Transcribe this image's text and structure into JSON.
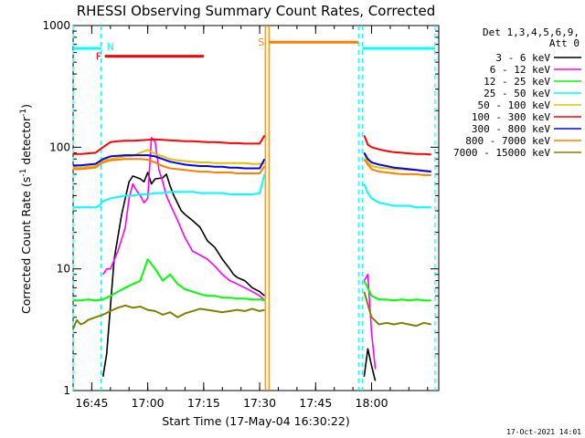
{
  "chart_data": {
    "type": "line",
    "title": "RHESSI Observing Summary Count Rates, Corrected",
    "xlabel": "Start Time (17-May-04 16:30:22)",
    "ylabel": "Corrected Count Rate (s⁻¹ detector⁻¹)",
    "ylabel_parts": {
      "main": "Corrected Count Rate (s",
      "sup1": "-1",
      "mid": " detector",
      "sup2": "-1",
      "end": ")"
    },
    "x_unit": "minutes of day (UT)",
    "xlim": [
      1000,
      1098
    ],
    "ylim": [
      1,
      1000
    ],
    "yscale": "log",
    "x_ticks": [
      {
        "value": 1005,
        "label": "16:45"
      },
      {
        "value": 1020,
        "label": "17:00"
      },
      {
        "value": 1035,
        "label": "17:15"
      },
      {
        "value": 1050,
        "label": "17:30"
      },
      {
        "value": 1065,
        "label": "17:45"
      },
      {
        "value": 1080,
        "label": "18:00"
      }
    ],
    "y_ticks": [
      {
        "value": 1,
        "label": "1"
      },
      {
        "value": 10,
        "label": "10"
      },
      {
        "value": 100,
        "label": "100"
      },
      {
        "value": 1000,
        "label": "1000"
      }
    ],
    "legend_header": [
      "Det 1,3,4,5,6,9,",
      "Att 0"
    ],
    "legend_position": "right",
    "footer_timestamp": "17-Oct-2021 14:01",
    "flags": [
      {
        "name": "N",
        "start": 1000,
        "end": 1007.5,
        "y": 650,
        "color": "#00ffff"
      },
      {
        "name": "N",
        "start": 1077.5,
        "end": 1097,
        "y": 650,
        "color": "#00ffff"
      },
      {
        "name": "F",
        "start": 1008.5,
        "end": 1035,
        "y": 560,
        "color": "#ff0000"
      },
      {
        "name": "S",
        "start": 1052.5,
        "end": 1076.5,
        "y": 730,
        "color": "#ff8000"
      }
    ],
    "flag_labels": {
      "N": "N",
      "F": "F",
      "S": "S"
    },
    "boundaries": [
      {
        "x": 1000,
        "color": "#00ffff"
      },
      {
        "x": 1007.5,
        "color": "#00ffff"
      },
      {
        "x": 1051.5,
        "color": "#ff8000"
      },
      {
        "x": 1052.5,
        "color": "#ff8000"
      },
      {
        "x": 1076.5,
        "color": "#00ffff"
      },
      {
        "x": 1077.5,
        "color": "#00ffff"
      },
      {
        "x": 1097,
        "color": "#00ffff"
      }
    ],
    "series": [
      {
        "name": "3 - 6 keV",
        "color": "#000000",
        "lw": 1.6,
        "x": [
          1008,
          1009,
          1011,
          1013,
          1015,
          1016,
          1018,
          1019,
          1020,
          1021,
          1022,
          1024,
          1025,
          1026,
          1027,
          1029,
          1030,
          1032,
          1034,
          1036,
          1038,
          1040,
          1042,
          1043,
          1044,
          1046,
          1048,
          1050,
          1051.3,
          1078,
          1079,
          1080,
          1081
        ],
        "y": [
          1.3,
          2.0,
          12,
          28,
          52,
          58,
          55,
          52,
          62,
          50,
          55,
          56,
          60,
          48,
          40,
          30,
          28,
          25,
          22,
          17,
          15,
          12,
          10,
          9,
          8.5,
          8,
          7,
          6.5,
          6,
          1.3,
          2.2,
          1.6,
          1.2
        ]
      },
      {
        "name": "6 - 12 keV",
        "color": "#ff00ff",
        "lw": 1.6,
        "x": [
          1008,
          1009,
          1010,
          1012,
          1014,
          1015,
          1016,
          1017,
          1018,
          1019,
          1020,
          1021,
          1022,
          1023,
          1024,
          1025,
          1026,
          1028,
          1030,
          1032,
          1034,
          1036,
          1038,
          1040,
          1042,
          1044,
          1046,
          1048,
          1050,
          1051.3,
          1078,
          1079,
          1080,
          1081
        ],
        "y": [
          9,
          10,
          10,
          14,
          22,
          38,
          50,
          44,
          40,
          35,
          38,
          120,
          110,
          65,
          52,
          40,
          34,
          25,
          18,
          14,
          13,
          12,
          10.5,
          9,
          8,
          7.5,
          7,
          6.5,
          6,
          5.5,
          8,
          9,
          3,
          1.5
        ]
      },
      {
        "name": "12 - 25 keV",
        "color": "#00ff00",
        "lw": 2,
        "x": [
          1000,
          1002,
          1004,
          1006,
          1008,
          1010,
          1012,
          1014,
          1016,
          1018,
          1020,
          1022,
          1024,
          1026,
          1028,
          1030,
          1032,
          1034,
          1036,
          1038,
          1040,
          1042,
          1044,
          1046,
          1048,
          1050,
          1051.3,
          1078,
          1080,
          1082,
          1084,
          1086,
          1088,
          1090,
          1092,
          1094,
          1096
        ],
        "y": [
          5.5,
          5.5,
          5.6,
          5.5,
          5.6,
          6.0,
          6.5,
          7.0,
          7.5,
          8.0,
          12,
          10,
          8,
          9,
          7.5,
          6.8,
          6.5,
          6.2,
          6.0,
          6.0,
          5.8,
          5.8,
          5.7,
          5.7,
          5.6,
          5.6,
          5.5,
          8,
          6.0,
          5.6,
          5.6,
          5.5,
          5.6,
          5.5,
          5.6,
          5.5,
          5.5
        ]
      },
      {
        "name": "25 - 50 keV",
        "color": "#00ffff",
        "lw": 2,
        "x": [
          1000,
          1002,
          1004,
          1006,
          1007,
          1008,
          1010,
          1012,
          1014,
          1016,
          1018,
          1020,
          1022,
          1024,
          1026,
          1028,
          1030,
          1032,
          1034,
          1036,
          1038,
          1040,
          1042,
          1044,
          1046,
          1048,
          1050,
          1051.3,
          1078,
          1079,
          1080,
          1082,
          1084,
          1086,
          1088,
          1090,
          1092,
          1094,
          1096
        ],
        "y": [
          32,
          32,
          32,
          32,
          33,
          36,
          38,
          39,
          40,
          40,
          41,
          41,
          42,
          42,
          43,
          43,
          43,
          43,
          42,
          42,
          42,
          42,
          41,
          41,
          41,
          41,
          42,
          60,
          50,
          42,
          38,
          35,
          34,
          33,
          33,
          33,
          32,
          32,
          32
        ]
      },
      {
        "name": "50 - 100 keV",
        "color": "#e0c000",
        "lw": 2,
        "x": [
          1000,
          1002,
          1004,
          1006,
          1008,
          1010,
          1012,
          1014,
          1016,
          1018,
          1020,
          1022,
          1024,
          1026,
          1028,
          1030,
          1032,
          1034,
          1036,
          1038,
          1040,
          1042,
          1044,
          1046,
          1048,
          1050,
          1051.3,
          1078,
          1079,
          1080,
          1082,
          1084,
          1086,
          1088,
          1090,
          1092,
          1094,
          1096
        ],
        "y": [
          68,
          68,
          69,
          70,
          78,
          80,
          82,
          84,
          85,
          90,
          95,
          88,
          84,
          80,
          78,
          77,
          76,
          75,
          75,
          74,
          74,
          74,
          74,
          74,
          73,
          73,
          74,
          90,
          75,
          70,
          68,
          67,
          66,
          66,
          65,
          65,
          64,
          64
        ]
      },
      {
        "name": "100 - 300 keV",
        "color": "#ff0000",
        "lw": 2,
        "x": [
          1000,
          1002,
          1004,
          1006,
          1008,
          1010,
          1012,
          1014,
          1016,
          1018,
          1020,
          1022,
          1024,
          1026,
          1028,
          1030,
          1032,
          1034,
          1036,
          1038,
          1040,
          1042,
          1044,
          1046,
          1048,
          1050,
          1051.3,
          1078,
          1079,
          1080,
          1082,
          1084,
          1086,
          1088,
          1090,
          1092,
          1094,
          1096
        ],
        "y": [
          88,
          88,
          89,
          90,
          100,
          110,
          112,
          113,
          113,
          114,
          115,
          116,
          115,
          114,
          113,
          112,
          112,
          111,
          110,
          110,
          109,
          108,
          108,
          107,
          107,
          107,
          125,
          125,
          105,
          100,
          96,
          93,
          91,
          90,
          89,
          88,
          88,
          87
        ]
      },
      {
        "name": "300 - 800 keV",
        "color": "#0000ff",
        "lw": 2,
        "x": [
          1000,
          1002,
          1004,
          1006,
          1008,
          1010,
          1012,
          1014,
          1016,
          1018,
          1020,
          1022,
          1024,
          1026,
          1028,
          1030,
          1032,
          1034,
          1036,
          1038,
          1040,
          1042,
          1044,
          1046,
          1048,
          1050,
          1051.3,
          1078,
          1079,
          1080,
          1082,
          1084,
          1086,
          1088,
          1090,
          1092,
          1094,
          1096
        ],
        "y": [
          71,
          71,
          72,
          73,
          80,
          84,
          85,
          86,
          86,
          86,
          86,
          84,
          80,
          76,
          74,
          72,
          71,
          70,
          70,
          69,
          69,
          68,
          68,
          67,
          67,
          67,
          80,
          90,
          80,
          75,
          72,
          70,
          68,
          67,
          66,
          65,
          64,
          63
        ]
      },
      {
        "name": "800 - 7000 keV",
        "color": "#ff8000",
        "lw": 2,
        "x": [
          1000,
          1002,
          1004,
          1006,
          1008,
          1010,
          1012,
          1014,
          1016,
          1018,
          1020,
          1022,
          1024,
          1026,
          1028,
          1030,
          1032,
          1034,
          1036,
          1038,
          1040,
          1042,
          1044,
          1046,
          1048,
          1050,
          1051.3,
          1078,
          1079,
          1080,
          1082,
          1084,
          1086,
          1088,
          1090,
          1092,
          1094,
          1096
        ],
        "y": [
          66,
          66,
          67,
          68,
          75,
          78,
          79,
          80,
          80,
          80,
          79,
          75,
          70,
          67,
          66,
          65,
          64,
          63,
          63,
          62,
          62,
          62,
          61,
          61,
          61,
          61,
          70,
          80,
          72,
          66,
          63,
          62,
          61,
          60,
          60,
          60,
          59,
          59
        ]
      },
      {
        "name": "7000 - 15000 keV",
        "color": "#808000",
        "lw": 2,
        "x": [
          1000,
          1001,
          1002,
          1003,
          1004,
          1006,
          1008,
          1010,
          1012,
          1014,
          1016,
          1018,
          1020,
          1022,
          1024,
          1026,
          1028,
          1030,
          1032,
          1034,
          1036,
          1038,
          1040,
          1042,
          1044,
          1046,
          1048,
          1050,
          1051.3,
          1078,
          1080,
          1082,
          1084,
          1086,
          1088,
          1090,
          1092,
          1094,
          1096
        ],
        "y": [
          3.2,
          3.8,
          3.5,
          3.6,
          3.8,
          4.0,
          4.2,
          4.5,
          4.8,
          5.0,
          4.8,
          4.9,
          4.6,
          4.5,
          4.2,
          4.4,
          4.0,
          4.3,
          4.5,
          4.7,
          4.6,
          4.5,
          4.4,
          4.5,
          4.6,
          4.5,
          4.7,
          4.5,
          4.6,
          6.5,
          4.0,
          3.5,
          3.6,
          3.5,
          3.6,
          3.5,
          3.4,
          3.6,
          3.5
        ]
      }
    ]
  }
}
